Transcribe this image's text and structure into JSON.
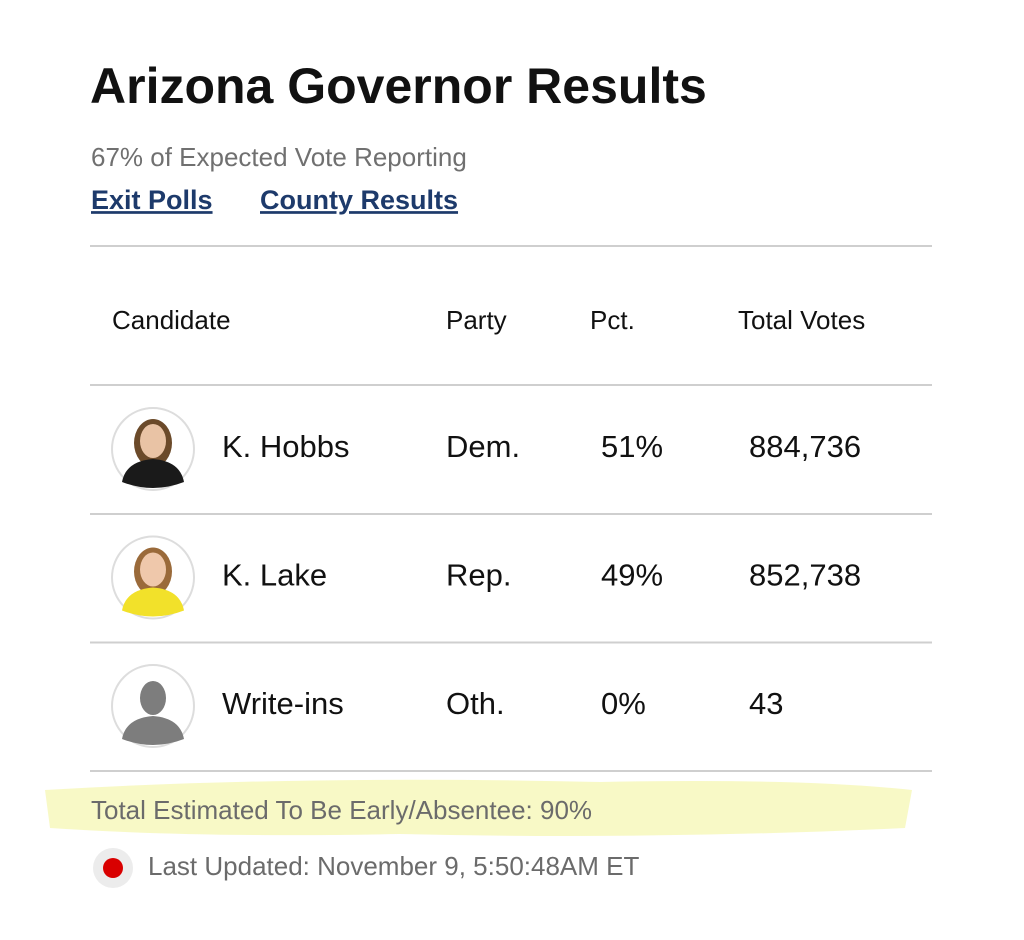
{
  "header": {
    "title": "Arizona Governor Results",
    "subtitle": "67% of Expected Vote Reporting",
    "links": [
      "Exit Polls",
      "County Results"
    ]
  },
  "table": {
    "columns": [
      "Candidate",
      "Party",
      "Pct.",
      "Total Votes"
    ],
    "rows": [
      [
        "K. Hobbs",
        "Dem.",
        "51%",
        "884,736"
      ],
      [
        "K. Lake",
        "Rep.",
        "49%",
        "852,738"
      ],
      [
        "Write-ins",
        "Oth.",
        "0%",
        "43"
      ]
    ]
  },
  "footer": {
    "note": "Total Estimated To Be Early/Absentee: 90%",
    "updated": "Last Updated: November 9, 5:50:48AM ET"
  }
}
